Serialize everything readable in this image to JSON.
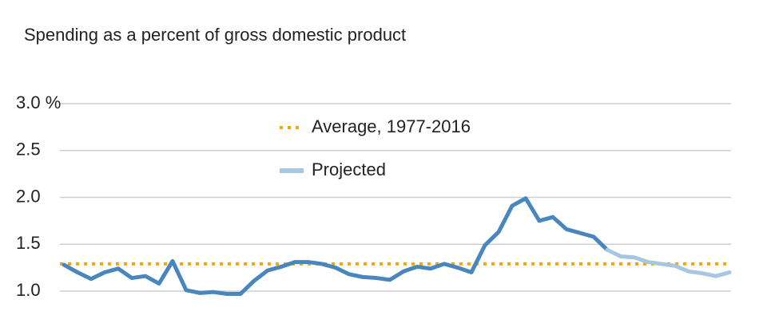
{
  "chart_data": {
    "type": "line",
    "subtitle": "Spending as a percent of gross domestic product",
    "categories": [
      null,
      null,
      null,
      null,
      null,
      null,
      null,
      null,
      null,
      null,
      null,
      null,
      null,
      null,
      null,
      null,
      null,
      null,
      null,
      null,
      null,
      null,
      null,
      null,
      null,
      null,
      null,
      null,
      null,
      null,
      null,
      null,
      null,
      null,
      null,
      null,
      null,
      null,
      null,
      null,
      null,
      null,
      null,
      null,
      null,
      null,
      null,
      null,
      null,
      null
    ],
    "series": [
      {
        "color": "#4a86be",
        "values": [
          1.28,
          1.2,
          1.13,
          1.2,
          1.24,
          1.14,
          1.16,
          1.08,
          1.32,
          1.01,
          0.98,
          0.99,
          0.97,
          0.97,
          1.11,
          1.22,
          1.26,
          1.31,
          1.31,
          1.29,
          1.25,
          1.18,
          1.15,
          1.14,
          1.12,
          1.21,
          1.26,
          1.24,
          1.29,
          1.25,
          1.2,
          1.49,
          1.63,
          1.91,
          1.99,
          1.75,
          1.79,
          1.66,
          1.62,
          1.58,
          1.44,
          null,
          null,
          null,
          null,
          null,
          null,
          null,
          null,
          null
        ]
      },
      {
        "name": "Projected",
        "color": "#a7c6e2",
        "values": [
          null,
          null,
          null,
          null,
          null,
          null,
          null,
          null,
          null,
          null,
          null,
          null,
          null,
          null,
          null,
          null,
          null,
          null,
          null,
          null,
          null,
          null,
          null,
          null,
          null,
          null,
          null,
          null,
          null,
          null,
          null,
          null,
          null,
          null,
          null,
          null,
          null,
          null,
          null,
          null,
          1.44,
          1.37,
          1.36,
          1.31,
          1.29,
          1.27,
          1.21,
          1.19,
          1.16,
          1.2
        ]
      }
    ],
    "reference_line": {
      "name": "Average, 1977-2016",
      "value": 1.29,
      "color": "#f5a800"
    },
    "ylim": [
      1,
      3
    ],
    "yticks": [
      {
        "value": 1,
        "label": "1.0"
      },
      {
        "value": 1.5,
        "label": "1.5"
      },
      {
        "value": 2,
        "label": "2.0"
      },
      {
        "value": 2.5,
        "label": "2.5"
      },
      {
        "value": 3,
        "label": "3.0 %"
      }
    ],
    "grid": true
  }
}
